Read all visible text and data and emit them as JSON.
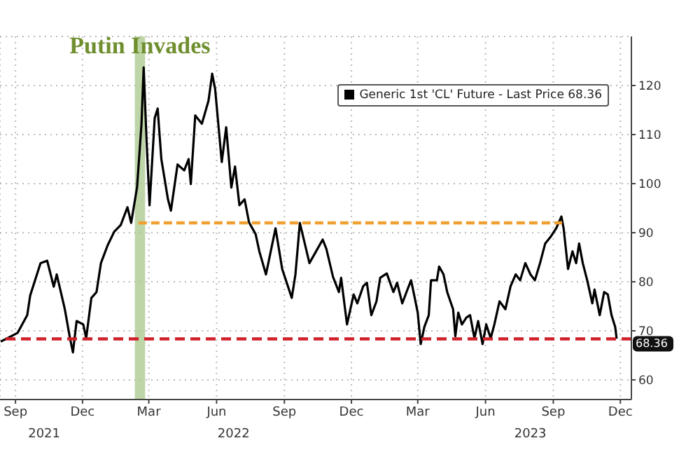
{
  "chart_data": {
    "type": "line",
    "xlim": [
      "2021-08-25",
      "2023-12-30"
    ],
    "ylim": [
      56,
      130
    ],
    "xticks": [
      {
        "value": "2021-09-15",
        "label": "Sep"
      },
      {
        "value": "2021-12-15",
        "label": "Dec"
      },
      {
        "value": "2022-03-15",
        "label": "Mar"
      },
      {
        "value": "2022-06-15",
        "label": "Jun"
      },
      {
        "value": "2022-09-15",
        "label": "Sep"
      },
      {
        "value": "2022-12-15",
        "label": "Dec"
      },
      {
        "value": "2023-03-15",
        "label": "Mar"
      },
      {
        "value": "2023-06-15",
        "label": "Jun"
      },
      {
        "value": "2023-09-15",
        "label": "Sep"
      },
      {
        "value": "2023-12-15",
        "label": "Dec"
      }
    ],
    "yticks": [
      60,
      70,
      80,
      90,
      100,
      110,
      120
    ],
    "grid": true,
    "legend": "top right",
    "marker": "none",
    "line_style": "solid",
    "series": [
      {
        "name": "Generic 1st 'CL' Future - Last Price 68.36",
        "color": "#000000",
        "x": [
          "2021-08-26",
          "2021-09-18",
          "2021-10-01",
          "2021-10-05",
          "2021-10-19",
          "2021-10-28",
          "2021-11-06",
          "2021-11-10",
          "2021-11-21",
          "2021-11-28",
          "2021-12-02",
          "2021-12-07",
          "2021-12-16",
          "2021-12-20",
          "2021-12-27",
          "2022-01-03",
          "2022-01-09",
          "2022-01-18",
          "2022-01-27",
          "2022-02-05",
          "2022-02-14",
          "2022-02-19",
          "2022-02-27",
          "2022-03-05",
          "2022-03-08",
          "2022-03-12",
          "2022-03-16",
          "2022-03-23",
          "2022-03-27",
          "2022-04-01",
          "2022-04-10",
          "2022-04-14",
          "2022-04-23",
          "2022-05-02",
          "2022-05-08",
          "2022-05-11",
          "2022-05-17",
          "2022-05-26",
          "2022-06-04",
          "2022-06-09",
          "2022-06-13",
          "2022-06-22",
          "2022-06-28",
          "2022-07-05",
          "2022-07-10",
          "2022-07-16",
          "2022-07-23",
          "2022-07-29",
          "2022-08-07",
          "2022-08-12",
          "2022-08-21",
          "2022-09-03",
          "2022-09-12",
          "2022-09-25",
          "2022-09-30",
          "2022-10-06",
          "2022-10-19",
          "2022-10-28",
          "2022-11-06",
          "2022-11-11",
          "2022-11-20",
          "2022-11-28",
          "2022-12-01",
          "2022-12-09",
          "2022-12-18",
          "2022-12-23",
          "2022-12-31",
          "2023-01-05",
          "2023-01-11",
          "2023-01-18",
          "2023-01-23",
          "2023-02-01",
          "2023-02-10",
          "2023-02-15",
          "2023-02-22",
          "2023-03-01",
          "2023-03-06",
          "2023-03-10",
          "2023-03-15",
          "2023-03-19",
          "2023-03-24",
          "2023-03-30",
          "2023-04-02",
          "2023-04-10",
          "2023-04-13",
          "2023-04-19",
          "2023-04-24",
          "2023-05-02",
          "2023-05-05",
          "2023-05-09",
          "2023-05-14",
          "2023-05-20",
          "2023-05-25",
          "2023-05-31",
          "2023-06-05",
          "2023-06-11",
          "2023-06-16",
          "2023-06-22",
          "2023-06-27",
          "2023-07-04",
          "2023-07-12",
          "2023-07-19",
          "2023-07-26",
          "2023-08-01",
          "2023-08-08",
          "2023-08-15",
          "2023-08-21",
          "2023-08-28",
          "2023-09-04",
          "2023-09-12",
          "2023-09-19",
          "2023-09-26",
          "2023-09-29",
          "2023-10-05",
          "2023-10-11",
          "2023-10-16",
          "2023-10-20",
          "2023-10-25",
          "2023-10-31",
          "2023-11-07",
          "2023-11-10",
          "2023-11-17",
          "2023-11-23",
          "2023-11-28",
          "2023-12-03",
          "2023-12-08",
          "2023-12-10"
        ],
        "values": [
          67.8,
          69.6,
          73.2,
          77.2,
          83.8,
          84.3,
          79,
          81.5,
          74.4,
          68.5,
          65.6,
          72,
          71.3,
          68.5,
          76.7,
          77.9,
          83.8,
          87.4,
          90.2,
          91.6,
          95.2,
          92,
          99.2,
          112,
          123.7,
          108.6,
          95.6,
          113.4,
          115.3,
          105,
          96.8,
          94.5,
          103.9,
          102.7,
          105,
          99.9,
          113.9,
          112.2,
          116.9,
          122.4,
          119.3,
          104.4,
          111.5,
          99.2,
          103.5,
          95.6,
          96.8,
          92.1,
          89.7,
          86.2,
          81.5,
          90.9,
          82.6,
          76.7,
          81.5,
          92,
          83.8,
          86.2,
          88.6,
          86.7,
          81,
          77.9,
          80.8,
          71.3,
          77.4,
          75.6,
          79.1,
          79.8,
          73.2,
          76,
          80.8,
          81.7,
          77.9,
          79.8,
          75.6,
          78.4,
          80.3,
          77.4,
          73.7,
          67.3,
          70.8,
          73.2,
          80.3,
          80.3,
          83.1,
          81.5,
          77.9,
          74.4,
          68.9,
          73.7,
          71.3,
          72.7,
          73.2,
          68.5,
          72,
          67.3,
          71.3,
          68.5,
          71.3,
          76,
          74.4,
          79.1,
          81.5,
          80.3,
          83.8,
          81.5,
          80.3,
          83.8,
          87.8,
          89.3,
          90.9,
          93.3,
          90.9,
          82.6,
          86.2,
          83.8,
          87.8,
          83.8,
          80.3,
          75.6,
          78.4,
          73.2,
          77.9,
          77.4,
          73.2,
          70.8,
          68.4
        ]
      },
      {
        "color": "#f0a030",
        "line_style": "dashed",
        "x": [
          "2022-03-01",
          "2023-09-27"
        ],
        "values": [
          92,
          92
        ]
      }
    ],
    "ref_lines": [
      {
        "axis": "y",
        "value": 68.36,
        "label": "68.36",
        "color": "#d0202a",
        "line_style": "dashed"
      }
    ],
    "bands": [
      {
        "axis": "x",
        "from": "2022-02-24",
        "to": "2022-03-10",
        "label": "Putin Invades",
        "color": "#a8c88a"
      }
    ],
    "annotations": [
      "2021",
      "2022",
      "2023"
    ]
  }
}
